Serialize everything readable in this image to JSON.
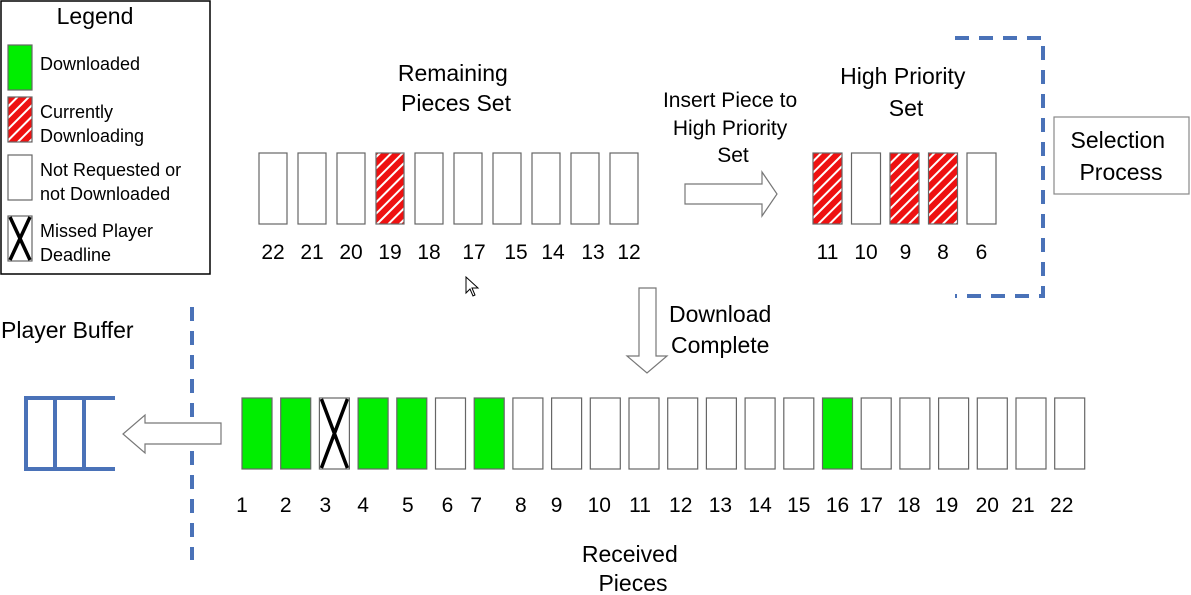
{
  "legend": {
    "title": "Legend",
    "items": [
      {
        "kind": "downloaded",
        "lines": [
          "Downloaded"
        ]
      },
      {
        "kind": "downloading",
        "lines": [
          "Currently",
          "Downloading"
        ]
      },
      {
        "kind": "empty",
        "lines": [
          "Not Requested or",
          "not Downloaded"
        ]
      },
      {
        "kind": "missed",
        "lines": [
          "Missed Player",
          "Deadline"
        ]
      }
    ]
  },
  "remaining": {
    "title": [
      "Remaining",
      "Pieces Set"
    ],
    "pieces": [
      {
        "label": "22",
        "state": "empty"
      },
      {
        "label": "21",
        "state": "empty"
      },
      {
        "label": "20",
        "state": "empty"
      },
      {
        "label": "19",
        "state": "downloading"
      },
      {
        "label": "18",
        "state": "empty"
      },
      {
        "label": "17",
        "state": "empty"
      },
      {
        "label": "15",
        "state": "empty"
      },
      {
        "label": "14",
        "state": "empty"
      },
      {
        "label": "13",
        "state": "empty"
      },
      {
        "label": "12",
        "state": "empty"
      }
    ]
  },
  "insert_arrow": {
    "label": [
      "Insert Piece to",
      "High Priority",
      "Set"
    ]
  },
  "high_priority": {
    "title": [
      "High Priority",
      "Set"
    ],
    "pieces": [
      {
        "label": "11",
        "state": "downloading"
      },
      {
        "label": "10",
        "state": "empty"
      },
      {
        "label": "9",
        "state": "downloading"
      },
      {
        "label": "8",
        "state": "downloading"
      },
      {
        "label": "6",
        "state": "empty"
      }
    ]
  },
  "selection": {
    "label": [
      "Selection",
      "Process"
    ]
  },
  "download_arrow": {
    "label": [
      "Download",
      "Complete"
    ]
  },
  "player_buffer": {
    "label": "Player Buffer"
  },
  "received": {
    "title": [
      "Received",
      "Pieces"
    ],
    "pieces": [
      {
        "label": "1",
        "state": "downloaded"
      },
      {
        "label": "2",
        "state": "downloaded"
      },
      {
        "label": "3",
        "state": "missed"
      },
      {
        "label": "4",
        "state": "downloaded"
      },
      {
        "label": "5",
        "state": "downloaded"
      },
      {
        "label": "6",
        "state": "empty"
      },
      {
        "label": "7",
        "state": "downloaded"
      },
      {
        "label": "8",
        "state": "empty"
      },
      {
        "label": "9",
        "state": "empty"
      },
      {
        "label": "10",
        "state": "empty"
      },
      {
        "label": "11",
        "state": "empty"
      },
      {
        "label": "12",
        "state": "empty"
      },
      {
        "label": "13",
        "state": "empty"
      },
      {
        "label": "14",
        "state": "empty"
      },
      {
        "label": "15",
        "state": "empty"
      },
      {
        "label": "16",
        "state": "downloaded"
      },
      {
        "label": "17",
        "state": "empty"
      },
      {
        "label": "18",
        "state": "empty"
      },
      {
        "label": "19",
        "state": "empty"
      },
      {
        "label": "20",
        "state": "empty"
      },
      {
        "label": "21",
        "state": "empty"
      },
      {
        "label": "22",
        "state": "empty"
      }
    ]
  },
  "colors": {
    "downloaded": "#00ee00",
    "downloading": "#ee1111",
    "stripe": "#ffffff",
    "outline": "#666666",
    "dash": "#4a72b8",
    "buffer": "#4a72b8",
    "arrow_stroke": "#777777"
  }
}
